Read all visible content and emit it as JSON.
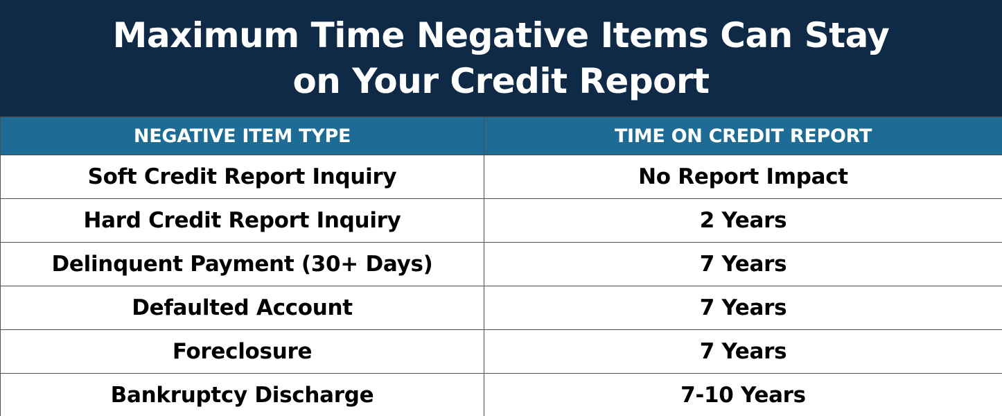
{
  "title": {
    "line1": "Maximum Time Negative Items Can Stay",
    "line2": "on Your Credit Report"
  },
  "table": {
    "headers": [
      "NEGATIVE ITEM TYPE",
      "TIME ON CREDIT REPORT"
    ],
    "rows": [
      [
        "Soft Credit Report Inquiry",
        "No Report Impact"
      ],
      [
        "Hard Credit Report Inquiry",
        "2 Years"
      ],
      [
        "Delinquent Payment (30+ Days)",
        "7 Years"
      ],
      [
        "Defaulted Account",
        "7 Years"
      ],
      [
        "Foreclosure",
        "7 Years"
      ],
      [
        "Bankruptcy Discharge",
        "7-10 Years"
      ]
    ]
  },
  "colors": {
    "title_background": "#0f2a47",
    "header_background": "#1e6b96",
    "header_text": "#ffffff",
    "body_text": "#000000",
    "border": "#4f4f4f"
  }
}
